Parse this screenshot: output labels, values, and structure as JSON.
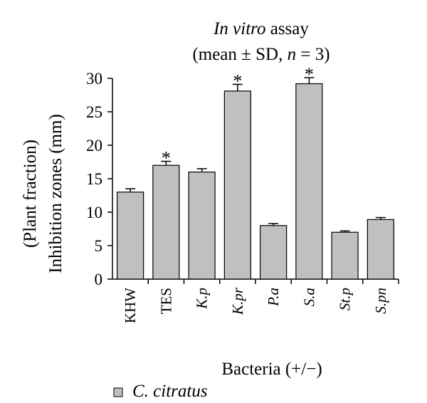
{
  "chart_data": {
    "type": "bar",
    "title_line1_italic": "In vitro",
    "title_line1_rest": " assay",
    "title_line2_pre": "(mean ± SD, ",
    "title_line2_n": "n",
    "title_line2_post": " = 3)",
    "ylabel_line1": "(Plant fraction)",
    "ylabel_line2": "Inhibition zones (mm)",
    "xlabel": "Bacteria (+/−)",
    "ylim": [
      0,
      30
    ],
    "yticks": [
      0,
      5,
      10,
      15,
      20,
      25,
      30
    ],
    "categories": [
      "KHW",
      "TES",
      "K.p",
      "K.pr",
      "P.a",
      "S.a",
      "St.p",
      "S.pn"
    ],
    "italic_categories": [
      false,
      false,
      true,
      true,
      true,
      true,
      true,
      true
    ],
    "series": [
      {
        "name": "C. citratus",
        "values": [
          13.0,
          17.0,
          16.0,
          28.1,
          8.0,
          29.2,
          7.0,
          8.9
        ],
        "errors": [
          0.5,
          0.6,
          0.5,
          1.0,
          0.3,
          0.9,
          0.2,
          0.3
        ],
        "color": "#c0c0c0"
      }
    ],
    "significance_label": "*",
    "significant": [
      false,
      true,
      false,
      true,
      false,
      true,
      false,
      false
    ],
    "legend_placement": "bottom-left",
    "grid": false
  }
}
